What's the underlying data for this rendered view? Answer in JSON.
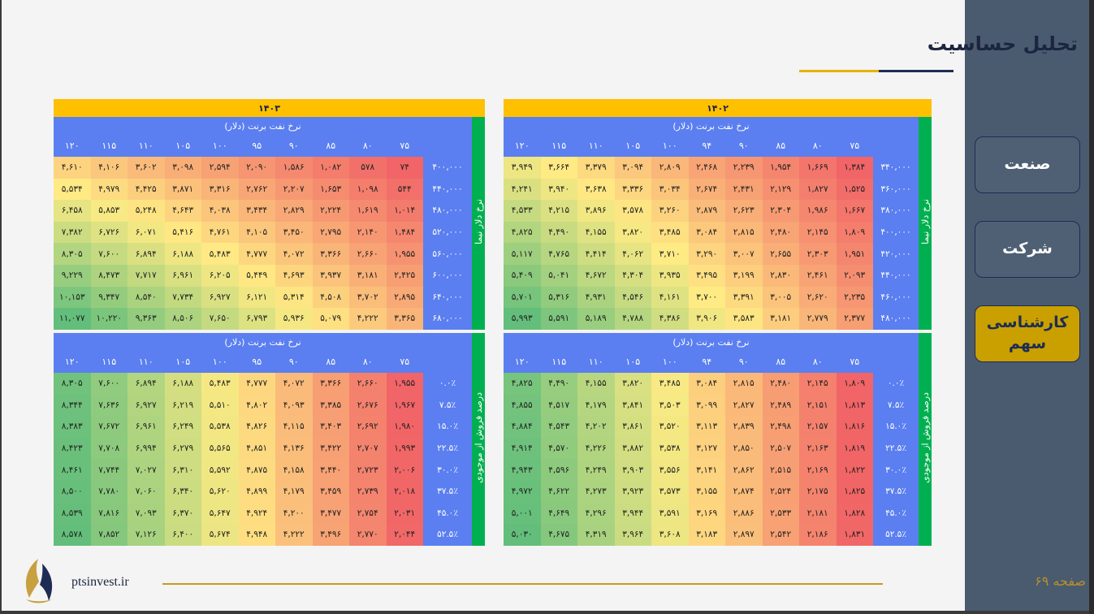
{
  "title": "تحلیل حساسیت",
  "nav": [
    {
      "label": "صنعت",
      "active": false
    },
    {
      "label": "شرکت",
      "active": false
    },
    {
      "label": "کارشناسی سهم",
      "active": true
    }
  ],
  "footer": {
    "site": "ptsinvest.ir",
    "page": "صفحه ۶۹"
  },
  "tables": [
    {
      "year": "۱۴۰۲",
      "header": "نرخ نفت برنت (دلار)",
      "side_label": "نرخ دلار نیما",
      "cols": [
        "۷۵",
        "۸۰",
        "۸۵",
        "۹۰",
        "۹۴",
        "۱۰۰",
        "۱۰۵",
        "۱۱۰",
        "۱۱۵",
        "۱۲۰"
      ],
      "rows": [
        {
          "label": "۳۴۰,۰۰۰",
          "values": [
            "۱,۳۸۴",
            "۱,۶۶۹",
            "۱,۹۵۴",
            "۲,۲۳۹",
            "۲,۴۶۸",
            "۲,۸۰۹",
            "۳,۰۹۴",
            "۳,۳۷۹",
            "۳,۶۶۴",
            "۳,۹۴۹"
          ]
        },
        {
          "label": "۳۶۰,۰۰۰",
          "values": [
            "۱,۵۲۵",
            "۱,۸۲۷",
            "۲,۱۲۹",
            "۲,۴۳۱",
            "۲,۶۷۴",
            "۳,۰۳۴",
            "۳,۳۳۶",
            "۳,۶۳۸",
            "۳,۹۴۰",
            "۴,۲۴۱"
          ]
        },
        {
          "label": "۳۸۰,۰۰۰",
          "values": [
            "۱,۶۶۷",
            "۱,۹۸۶",
            "۲,۳۰۴",
            "۲,۶۲۳",
            "۲,۸۷۹",
            "۳,۲۶۰",
            "۳,۵۷۸",
            "۳,۸۹۶",
            "۴,۲۱۵",
            "۴,۵۳۳"
          ]
        },
        {
          "label": "۴۰۰,۰۰۰",
          "values": [
            "۱,۸۰۹",
            "۲,۱۴۵",
            "۲,۴۸۰",
            "۲,۸۱۵",
            "۳,۰۸۴",
            "۳,۴۸۵",
            "۳,۸۲۰",
            "۴,۱۵۵",
            "۴,۴۹۰",
            "۴,۸۲۵"
          ]
        },
        {
          "label": "۴۲۰,۰۰۰",
          "values": [
            "۱,۹۵۱",
            "۲,۳۰۳",
            "۲,۶۵۵",
            "۳,۰۰۷",
            "۳,۲۹۰",
            "۳,۷۱۰",
            "۴,۰۶۲",
            "۴,۴۱۴",
            "۴,۷۶۵",
            "۵,۱۱۷"
          ]
        },
        {
          "label": "۴۴۰,۰۰۰",
          "values": [
            "۲,۰۹۳",
            "۲,۴۶۱",
            "۲,۸۳۰",
            "۳,۱۹۹",
            "۳,۴۹۵",
            "۳,۹۳۵",
            "۴,۳۰۴",
            "۴,۶۷۲",
            "۵,۰۴۱",
            "۵,۴۰۹"
          ]
        },
        {
          "label": "۴۶۰,۰۰۰",
          "values": [
            "۲,۲۳۵",
            "۲,۶۲۰",
            "۳,۰۰۵",
            "۳,۳۹۱",
            "۳,۷۰۰",
            "۴,۱۶۱",
            "۴,۵۴۶",
            "۴,۹۳۱",
            "۵,۳۱۶",
            "۵,۷۰۱"
          ]
        },
        {
          "label": "۴۸۰,۰۰۰",
          "values": [
            "۲,۳۷۷",
            "۲,۷۷۹",
            "۳,۱۸۱",
            "۳,۵۸۳",
            "۳,۹۰۶",
            "۴,۳۸۶",
            "۴,۷۸۸",
            "۵,۱۸۹",
            "۵,۵۹۱",
            "۵,۹۹۳"
          ]
        }
      ]
    },
    {
      "year": "۱۴۰۳",
      "header": "نرخ نفت برنت (دلار)",
      "side_label": "نرخ دلار نیما",
      "cols": [
        "۷۵",
        "۸۰",
        "۸۵",
        "۹۰",
        "۹۵",
        "۱۰۰",
        "۱۰۵",
        "۱۱۰",
        "۱۱۵",
        "۱۲۰"
      ],
      "rows": [
        {
          "label": "۴۰۰,۰۰۰",
          "values": [
            "۷۴",
            "۵۷۸",
            "۱,۰۸۲",
            "۱,۵۸۶",
            "۲,۰۹۰",
            "۲,۵۹۴",
            "۳,۰۹۸",
            "۳,۶۰۲",
            "۴,۱۰۶",
            "۴,۶۱۰"
          ]
        },
        {
          "label": "۴۴۰,۰۰۰",
          "values": [
            "۵۴۴",
            "۱,۰۹۸",
            "۱,۶۵۳",
            "۲,۲۰۷",
            "۲,۷۶۲",
            "۳,۳۱۶",
            "۳,۸۷۱",
            "۴,۴۲۵",
            "۴,۹۷۹",
            "۵,۵۳۴"
          ]
        },
        {
          "label": "۴۸۰,۰۰۰",
          "values": [
            "۱,۰۱۴",
            "۱,۶۱۹",
            "۲,۲۲۴",
            "۲,۸۲۹",
            "۳,۴۳۴",
            "۴,۰۳۸",
            "۴,۶۴۳",
            "۵,۲۴۸",
            "۵,۸۵۳",
            "۶,۴۵۸"
          ]
        },
        {
          "label": "۵۲۰,۰۰۰",
          "values": [
            "۱,۴۸۴",
            "۲,۱۴۰",
            "۲,۷۹۵",
            "۳,۴۵۰",
            "۴,۱۰۵",
            "۴,۷۶۱",
            "۵,۴۱۶",
            "۶,۰۷۱",
            "۶,۷۲۶",
            "۷,۳۸۲"
          ]
        },
        {
          "label": "۵۶۰,۰۰۰",
          "values": [
            "۱,۹۵۵",
            "۲,۶۶۰",
            "۳,۳۶۶",
            "۴,۰۷۲",
            "۴,۷۷۷",
            "۵,۴۸۳",
            "۶,۱۸۸",
            "۶,۸۹۴",
            "۷,۶۰۰",
            "۸,۳۰۵"
          ]
        },
        {
          "label": "۶۰۰,۰۰۰",
          "values": [
            "۲,۴۲۵",
            "۳,۱۸۱",
            "۳,۹۳۷",
            "۴,۶۹۳",
            "۵,۴۴۹",
            "۶,۲۰۵",
            "۶,۹۶۱",
            "۷,۷۱۷",
            "۸,۴۷۳",
            "۹,۲۲۹"
          ]
        },
        {
          "label": "۶۴۰,۰۰۰",
          "values": [
            "۲,۸۹۵",
            "۳,۷۰۲",
            "۴,۵۰۸",
            "۵,۳۱۴",
            "۶,۱۲۱",
            "۶,۹۲۷",
            "۷,۷۳۴",
            "۸,۵۴۰",
            "۹,۳۴۷",
            "۱۰,۱۵۳"
          ]
        },
        {
          "label": "۶۸۰,۰۰۰",
          "values": [
            "۳,۳۶۵",
            "۴,۲۲۲",
            "۵,۰۷۹",
            "۵,۹۳۶",
            "۶,۷۹۳",
            "۷,۶۵۰",
            "۸,۵۰۶",
            "۹,۳۶۳",
            "۱۰,۲۲۰",
            "۱۱,۰۷۷"
          ]
        }
      ]
    },
    {
      "header": "نرخ نفت برنت (دلار)",
      "side_label": "درصد فروش از موجودی",
      "cols": [
        "۷۵",
        "۸۰",
        "۸۵",
        "۹۰",
        "۹۴",
        "۱۰۰",
        "۱۰۵",
        "۱۱۰",
        "۱۱۵",
        "۱۲۰"
      ],
      "rows": [
        {
          "label": "۰.۰٪",
          "values": [
            "۱,۸۰۹",
            "۲,۱۴۵",
            "۲,۴۸۰",
            "۲,۸۱۵",
            "۳,۰۸۴",
            "۳,۴۸۵",
            "۳,۸۲۰",
            "۴,۱۵۵",
            "۴,۴۹۰",
            "۴,۸۲۵"
          ]
        },
        {
          "label": "۷.۵٪",
          "values": [
            "۱,۸۱۳",
            "۲,۱۵۱",
            "۲,۴۸۹",
            "۲,۸۲۷",
            "۳,۰۹۹",
            "۳,۵۰۳",
            "۳,۸۴۱",
            "۴,۱۷۹",
            "۴,۵۱۷",
            "۴,۸۵۵"
          ]
        },
        {
          "label": "۱۵.۰٪",
          "values": [
            "۱,۸۱۶",
            "۲,۱۵۷",
            "۲,۴۹۸",
            "۲,۸۳۹",
            "۳,۱۱۳",
            "۳,۵۲۰",
            "۳,۸۶۱",
            "۴,۲۰۲",
            "۴,۵۴۳",
            "۴,۸۸۴"
          ]
        },
        {
          "label": "۲۲.۵٪",
          "values": [
            "۱,۸۱۹",
            "۲,۱۶۳",
            "۲,۵۰۷",
            "۲,۸۵۰",
            "۳,۱۲۷",
            "۳,۵۳۸",
            "۳,۸۸۲",
            "۴,۲۲۶",
            "۴,۵۷۰",
            "۴,۹۱۴"
          ]
        },
        {
          "label": "۳۰.۰٪",
          "values": [
            "۱,۸۲۲",
            "۲,۱۶۹",
            "۲,۵۱۵",
            "۲,۸۶۲",
            "۳,۱۴۱",
            "۳,۵۵۶",
            "۳,۹۰۳",
            "۴,۲۴۹",
            "۴,۵۹۶",
            "۴,۹۴۳"
          ]
        },
        {
          "label": "۳۷.۵٪",
          "values": [
            "۱,۸۲۵",
            "۲,۱۷۵",
            "۲,۵۲۴",
            "۲,۸۷۴",
            "۳,۱۵۵",
            "۳,۵۷۳",
            "۳,۹۲۳",
            "۴,۲۷۳",
            "۴,۶۲۲",
            "۴,۹۷۲"
          ]
        },
        {
          "label": "۴۵.۰٪",
          "values": [
            "۱,۸۲۸",
            "۲,۱۸۱",
            "۲,۵۳۳",
            "۲,۸۸۶",
            "۳,۱۶۹",
            "۳,۵۹۱",
            "۳,۹۴۴",
            "۴,۲۹۶",
            "۴,۶۴۹",
            "۵,۰۰۱"
          ]
        },
        {
          "label": "۵۲.۵٪",
          "values": [
            "۱,۸۳۱",
            "۲,۱۸۶",
            "۲,۵۴۲",
            "۲,۸۹۷",
            "۳,۱۸۳",
            "۳,۶۰۸",
            "۳,۹۶۴",
            "۴,۳۱۹",
            "۴,۶۷۵",
            "۵,۰۳۰"
          ]
        }
      ]
    },
    {
      "header": "نرخ نفت برنت (دلار)",
      "side_label": "درصد فروش از موجودی",
      "cols": [
        "۷۵",
        "۸۰",
        "۸۵",
        "۹۰",
        "۹۵",
        "۱۰۰",
        "۱۰۵",
        "۱۱۰",
        "۱۱۵",
        "۱۲۰"
      ],
      "rows": [
        {
          "label": "۰.۰٪",
          "values": [
            "۱,۹۵۵",
            "۲,۶۶۰",
            "۳,۳۶۶",
            "۴,۰۷۲",
            "۴,۷۷۷",
            "۵,۴۸۳",
            "۶,۱۸۸",
            "۶,۸۹۴",
            "۷,۶۰۰",
            "۸,۳۰۵"
          ]
        },
        {
          "label": "۷.۵٪",
          "values": [
            "۱,۹۶۷",
            "۲,۶۷۶",
            "۳,۳۸۵",
            "۴,۰۹۳",
            "۴,۸۰۲",
            "۵,۵۱۰",
            "۶,۲۱۹",
            "۶,۹۲۷",
            "۷,۶۳۶",
            "۸,۳۴۴"
          ]
        },
        {
          "label": "۱۵.۰٪",
          "values": [
            "۱,۹۸۰",
            "۲,۶۹۲",
            "۳,۴۰۳",
            "۴,۱۱۵",
            "۴,۸۲۶",
            "۵,۵۳۸",
            "۶,۲۴۹",
            "۶,۹۶۱",
            "۷,۶۷۲",
            "۸,۳۸۳"
          ]
        },
        {
          "label": "۲۲.۵٪",
          "values": [
            "۱,۹۹۳",
            "۲,۷۰۷",
            "۳,۴۲۲",
            "۴,۱۳۶",
            "۴,۸۵۱",
            "۵,۵۶۵",
            "۶,۲۷۹",
            "۶,۹۹۴",
            "۷,۷۰۸",
            "۸,۴۲۳"
          ]
        },
        {
          "label": "۳۰.۰٪",
          "values": [
            "۲,۰۰۶",
            "۲,۷۲۳",
            "۳,۴۴۰",
            "۴,۱۵۸",
            "۴,۸۷۵",
            "۵,۵۹۲",
            "۶,۳۱۰",
            "۷,۰۲۷",
            "۷,۷۴۴",
            "۸,۴۶۱"
          ]
        },
        {
          "label": "۳۷.۵٪",
          "values": [
            "۲,۰۱۸",
            "۲,۷۳۹",
            "۳,۴۵۹",
            "۴,۱۷۹",
            "۴,۸۹۹",
            "۵,۶۲۰",
            "۶,۳۴۰",
            "۷,۰۶۰",
            "۷,۷۸۰",
            "۸,۵۰۰"
          ]
        },
        {
          "label": "۴۵.۰٪",
          "values": [
            "۲,۰۳۱",
            "۲,۷۵۴",
            "۳,۴۷۷",
            "۴,۲۰۰",
            "۴,۹۲۴",
            "۵,۶۴۷",
            "۶,۳۷۰",
            "۷,۰۹۳",
            "۷,۸۱۶",
            "۸,۵۳۹"
          ]
        },
        {
          "label": "۵۲.۵٪",
          "values": [
            "۲,۰۴۴",
            "۲,۷۷۰",
            "۳,۴۹۶",
            "۴,۲۲۲",
            "۴,۹۴۸",
            "۵,۶۷۴",
            "۶,۴۰۰",
            "۷,۱۲۶",
            "۷,۸۵۲",
            "۸,۵۷۸"
          ]
        }
      ]
    }
  ]
}
